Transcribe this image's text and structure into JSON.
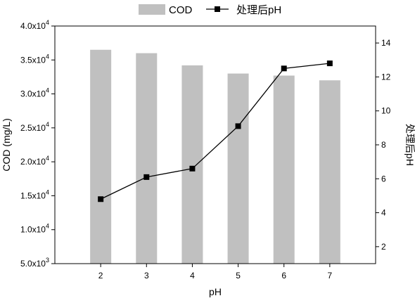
{
  "chart_data": {
    "type": "bar",
    "categories": [
      "2",
      "3",
      "4",
      "5",
      "6",
      "7"
    ],
    "xlabel": "pH",
    "ylabel": "COD (mg/L)",
    "y2label": "处理后pH",
    "legend_position": "top",
    "grid": false,
    "ylim": [
      5000,
      40000
    ],
    "y2lim": [
      1,
      15
    ],
    "y_tick_labels": [
      {
        "value": 5000,
        "mant": "5.0x10",
        "exp": "3"
      },
      {
        "value": 10000,
        "mant": "1.0x10",
        "exp": "4"
      },
      {
        "value": 15000,
        "mant": "1.5x10",
        "exp": "4"
      },
      {
        "value": 20000,
        "mant": "2.0x10",
        "exp": "4"
      },
      {
        "value": 25000,
        "mant": "2.5x10",
        "exp": "4"
      },
      {
        "value": 30000,
        "mant": "3.0x10",
        "exp": "4"
      },
      {
        "value": 35000,
        "mant": "3.5x10",
        "exp": "4"
      },
      {
        "value": 40000,
        "mant": "4.0x10",
        "exp": "4"
      }
    ],
    "y2_ticks": [
      2,
      4,
      6,
      8,
      10,
      12,
      14
    ],
    "series": [
      {
        "name": "COD",
        "type": "bar",
        "axis": "left",
        "color": "#c0c0c0",
        "values": [
          36500,
          36000,
          34200,
          33000,
          32700,
          32000
        ]
      },
      {
        "name": "处理后pH",
        "type": "line",
        "axis": "right",
        "color": "#000000",
        "values": [
          4.8,
          6.1,
          6.6,
          9.1,
          12.5,
          12.8
        ]
      }
    ]
  }
}
